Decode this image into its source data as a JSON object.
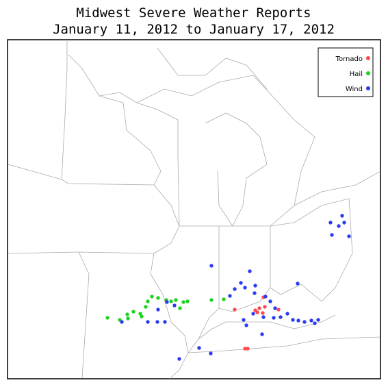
{
  "title": [
    "Midwest Severe Weather Reports",
    "January 11, 2012 to January 17, 2012"
  ],
  "legend": [
    {
      "label": "Tornado",
      "color": "#ff4a4a"
    },
    {
      "label": "Hail",
      "color": "#1ed21e"
    },
    {
      "label": "Wind",
      "color": "#2a3cf0"
    }
  ]
}
